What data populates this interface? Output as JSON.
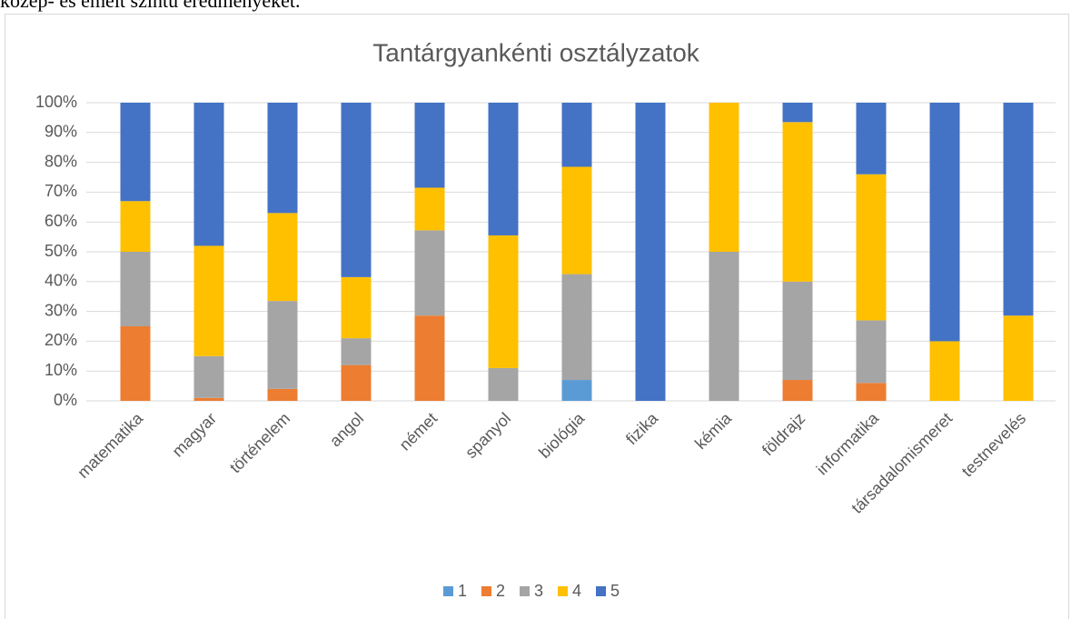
{
  "context_text": "közép- és emelt szintű eredményeket.",
  "chart_data": {
    "type": "stacked_bar_100",
    "title": "Tantárgyankénti osztályzatok",
    "categories": [
      "matematika",
      "magyar",
      "történelem",
      "angol",
      "német",
      "spanyol",
      "biológia",
      "fizika",
      "kémia",
      "földrajz",
      "informatika",
      "társadalomismeret",
      "testnevelés"
    ],
    "series": [
      {
        "name": "1",
        "color": "#5b9bd5",
        "values": [
          0,
          0,
          0,
          0,
          0,
          0,
          7,
          0,
          0,
          0,
          0,
          0,
          0
        ]
      },
      {
        "name": "2",
        "color": "#ed7d31",
        "values": [
          25,
          1,
          4,
          12,
          28.6,
          0,
          0,
          0,
          0,
          7,
          6,
          0,
          0
        ]
      },
      {
        "name": "3",
        "color": "#a5a5a5",
        "values": [
          25,
          14,
          29.5,
          9,
          28.6,
          11,
          35.5,
          0,
          50,
          33,
          21,
          0,
          0
        ]
      },
      {
        "name": "4",
        "color": "#ffc000",
        "values": [
          17,
          37,
          29.5,
          20.5,
          14.3,
          44.5,
          36,
          0,
          50,
          53.5,
          49,
          20,
          28.6
        ]
      },
      {
        "name": "5",
        "color": "#4472c4",
        "values": [
          33,
          48,
          37,
          58.5,
          28.5,
          44.5,
          21.5,
          100,
          0,
          6.5,
          24,
          80,
          71.4
        ]
      }
    ],
    "ylim": [
      0,
      100
    ],
    "yticks": [
      {
        "value": 0,
        "label": "0%"
      },
      {
        "value": 10,
        "label": "10%"
      },
      {
        "value": 20,
        "label": "20%"
      },
      {
        "value": 30,
        "label": "30%"
      },
      {
        "value": 40,
        "label": "40%"
      },
      {
        "value": 50,
        "label": "50%"
      },
      {
        "value": 60,
        "label": "60%"
      },
      {
        "value": 70,
        "label": "70%"
      },
      {
        "value": 80,
        "label": "80%"
      },
      {
        "value": 90,
        "label": "90%"
      },
      {
        "value": 100,
        "label": "100%"
      }
    ],
    "grid": true,
    "legend": "bottom"
  }
}
